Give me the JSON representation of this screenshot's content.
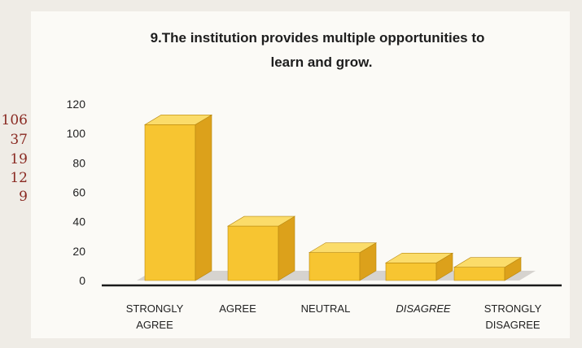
{
  "chart_data": {
    "type": "bar",
    "title_lines": [
      "9.The institution provides multiple opportunities to",
      "learn and grow."
    ],
    "categories": [
      {
        "lines": [
          "STRONGLY",
          "AGREE"
        ],
        "italic": false
      },
      {
        "lines": [
          "AGREE"
        ],
        "italic": false
      },
      {
        "lines": [
          "NEUTRAL"
        ],
        "italic": false
      },
      {
        "lines": [
          "DISAGREE"
        ],
        "italic": true
      },
      {
        "lines": [
          "STRONGLY",
          "DISAGREE"
        ],
        "italic": false
      }
    ],
    "values": [
      106,
      37,
      19,
      12,
      9
    ],
    "yticks": [
      "0",
      "20",
      "40",
      "60",
      "80",
      "100",
      "120"
    ],
    "ylim": [
      0,
      120
    ],
    "side_labels": [
      "106",
      "37",
      "19",
      "12",
      "9"
    ],
    "grid": false,
    "legend": "none",
    "colors": {
      "bar_front": "#f7c531",
      "bar_side": "#dca11b",
      "bar_top": "#fbdc6a",
      "floor": "#d6d3cf",
      "side_text": "#8a2a22"
    }
  }
}
